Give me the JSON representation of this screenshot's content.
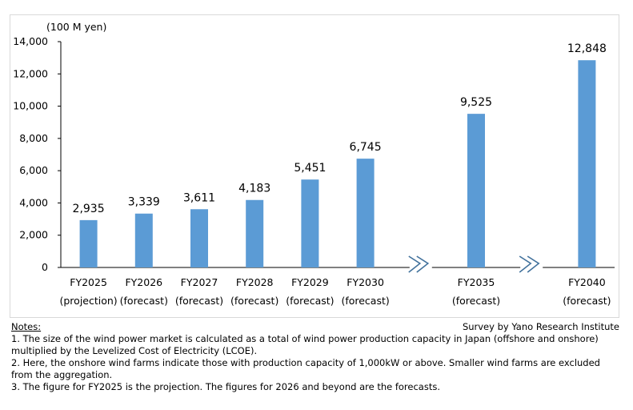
{
  "chart_data": {
    "type": "bar",
    "ylabel": "(100 M yen)",
    "ylim": [
      0,
      14000
    ],
    "yticks": [
      "0",
      "2,000",
      "4,000",
      "6,000",
      "8,000",
      "10,000",
      "12,000",
      "14,000"
    ],
    "categories": [
      {
        "line1": "FY2025",
        "line2": "(projection)"
      },
      {
        "line1": "FY2026",
        "line2": "(forecast)"
      },
      {
        "line1": "FY2027",
        "line2": "(forecast)"
      },
      {
        "line1": "FY2028",
        "line2": "(forecast)"
      },
      {
        "line1": "FY2029",
        "line2": "(forecast)"
      },
      {
        "line1": "FY2030",
        "line2": "(forecast)"
      },
      {
        "line1": "FY2035",
        "line2": "(forecast)"
      },
      {
        "line1": "FY2040",
        "line2": "(forecast)"
      }
    ],
    "values": [
      2935,
      3339,
      3611,
      4183,
      5451,
      6745,
      9525,
      12848
    ],
    "data_labels": [
      "2,935",
      "3,339",
      "3,611",
      "4,183",
      "5,451",
      "6,745",
      "9,525",
      "12,848"
    ],
    "axis_breaks_after": [
      "FY2030",
      "FY2035"
    ],
    "bar_color": "#5b9bd5",
    "break_color": "#41719c",
    "grid": false,
    "legend": "none"
  },
  "notes": {
    "title": "Notes:",
    "source": "Survey by Yano Research Institute",
    "lines": [
      "1.  The size of the wind power market is calculated as a total of wind power production capacity in Japan  (offshore and onshore)",
      "multiplied by the Levelized Cost of Electricity (LCOE).",
      "2.  Here, the onshore wind farms indicate those with production capacity of 1,000kW or above. Smaller wind farms are excluded",
      "from the aggregation.",
      "3.  The figure for FY2025 is the projection. The figures for 2026 and beyond are the forecasts."
    ]
  }
}
